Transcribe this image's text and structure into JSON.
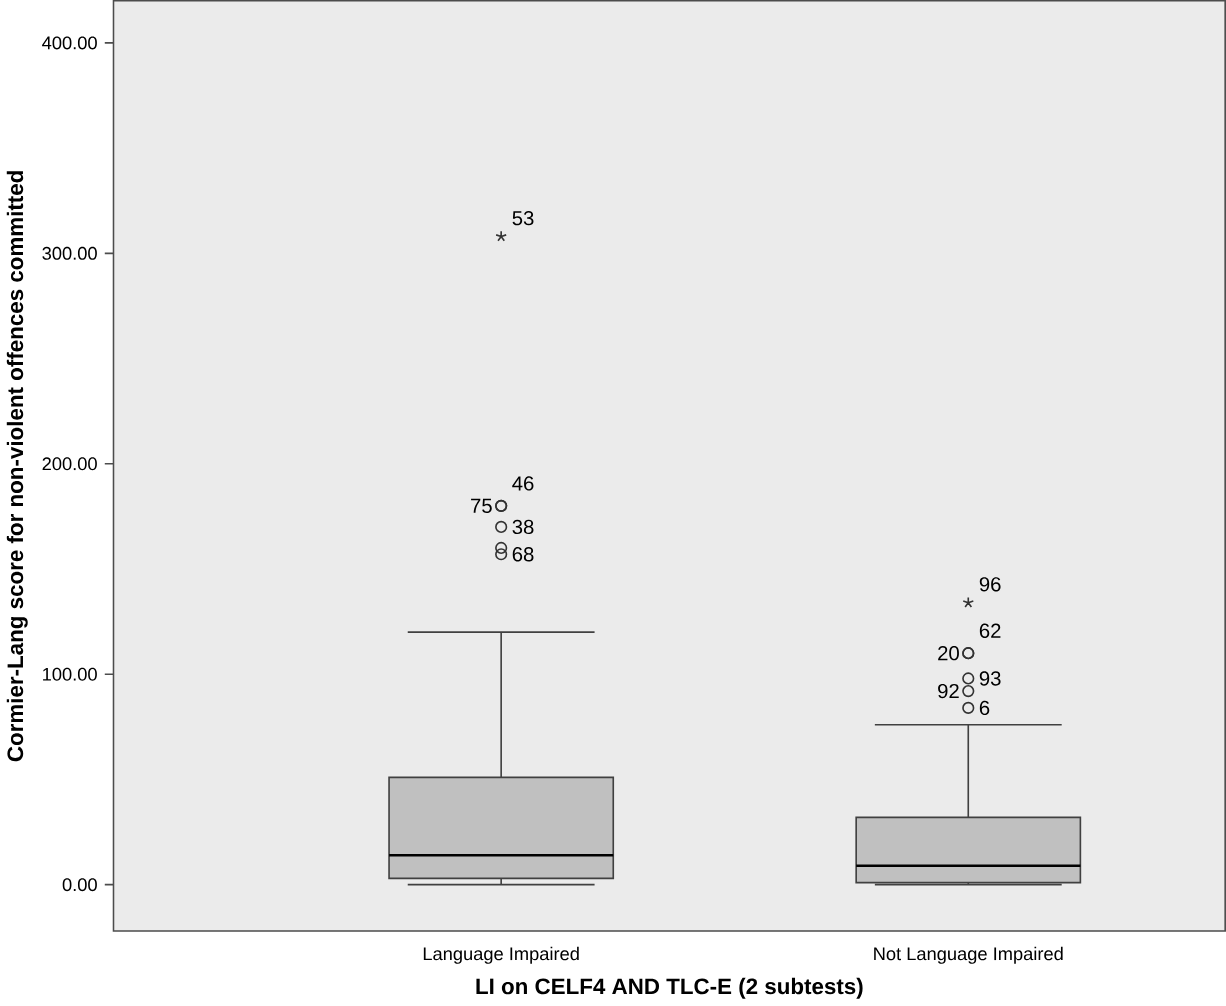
{
  "chart_data": {
    "type": "box",
    "xlabel": "LI on CELF4 AND TLC-E (2 subtests)",
    "ylabel": "Cormier-Lang score for non-violent offences committed",
    "categories": [
      "Language Impaired",
      "Not Language Impaired"
    ],
    "color": "#c0c0c0",
    "boxes": [
      {
        "low": 0,
        "q1": 3,
        "median": 14,
        "q3": 51,
        "high": 120,
        "outliers": [
          308,
          180,
          180,
          170,
          160,
          157
        ]
      },
      {
        "low": 0,
        "q1": 1,
        "median": 9,
        "q3": 32,
        "high": 76,
        "outliers": [
          134,
          110,
          110,
          98,
          92,
          84
        ]
      }
    ],
    "ylim": [
      -22,
      420
    ],
    "yticks": [
      {
        "value": 0,
        "label": "0.00"
      },
      {
        "value": 100,
        "label": "100.00"
      },
      {
        "value": 200,
        "label": "200.00"
      },
      {
        "value": 300,
        "label": "300.00"
      },
      {
        "value": 400,
        "label": "400.00"
      }
    ],
    "annotations": [
      "53",
      "46",
      "75",
      "38",
      "68",
      "96",
      "62",
      "20",
      "93",
      "92",
      "6"
    ]
  }
}
